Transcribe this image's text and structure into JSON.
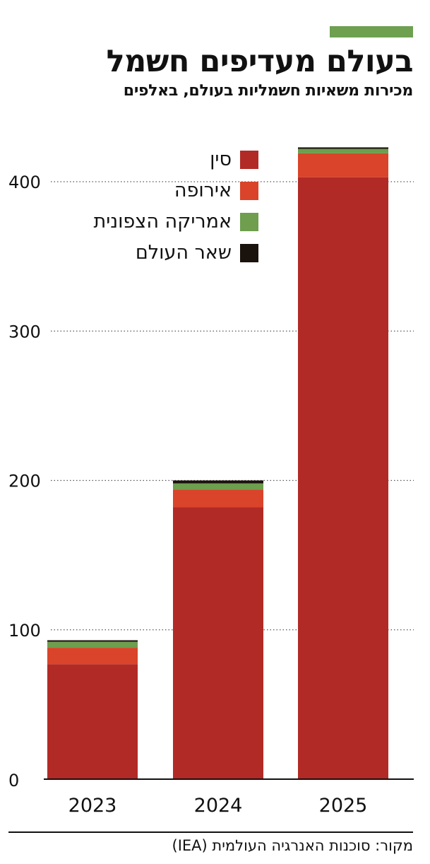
{
  "header": {
    "title": "בעולם מעדיפים חשמל",
    "subtitle": "מכירות משאיות חשמליות בעולם, באלפים"
  },
  "colors": {
    "accent": "#6ea050",
    "china": "#b22a26",
    "europe": "#d9442a",
    "north_america": "#6e9e4e",
    "rest_of_world": "#1a120c"
  },
  "legend": [
    {
      "label": "סין",
      "color": "#b22a26"
    },
    {
      "label": "אירופה",
      "color": "#d9442a"
    },
    {
      "label": "אמריקה הצפונית",
      "color": "#6e9e4e"
    },
    {
      "label": "שאר העולם",
      "color": "#1a120c"
    }
  ],
  "chart_data": {
    "type": "bar",
    "stacked": true,
    "categories": [
      "2023",
      "2024",
      "2025"
    ],
    "series": [
      {
        "name": "סין",
        "color": "#b22a26",
        "values": [
          77,
          182,
          403
        ]
      },
      {
        "name": "אירופה",
        "color": "#d9442a",
        "values": [
          11,
          12,
          16
        ]
      },
      {
        "name": "אמריקה הצפונית",
        "color": "#6e9e4e",
        "values": [
          4,
          4,
          3
        ]
      },
      {
        "name": "שאר העולם",
        "color": "#1a120c",
        "values": [
          1,
          2,
          1
        ]
      }
    ],
    "yticks": [
      0,
      100,
      200,
      300,
      400
    ],
    "ylim": [
      0,
      430
    ],
    "grid": "dotted",
    "legend_position": "top-center"
  },
  "footer": {
    "source": "מקור: סוכנות האנרגיה העולמית (IEA)"
  }
}
